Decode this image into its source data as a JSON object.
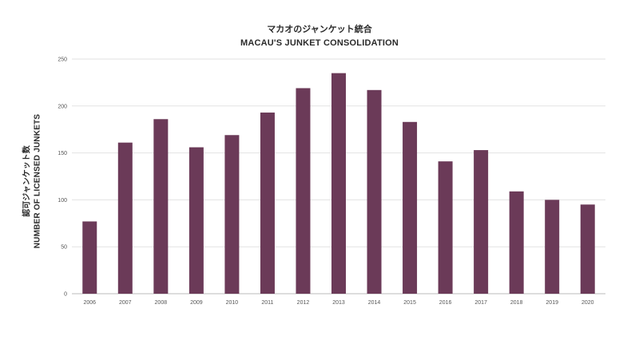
{
  "chart_data": {
    "type": "bar",
    "title": "マカオのジャンケット統合",
    "subtitle": "MACAU'S JUNKET CONSOLIDATION",
    "ylabel": "認可ジャンケット数",
    "ylabel_en": "NUMBER OF LICENSED JUNKETS",
    "xlabel": "",
    "categories": [
      "2006",
      "2007",
      "2008",
      "2009",
      "2010",
      "2011",
      "2012",
      "2013",
      "2014",
      "2015",
      "2016",
      "2017",
      "2018",
      "2019",
      "2020"
    ],
    "values": [
      77,
      161,
      186,
      156,
      169,
      193,
      219,
      235,
      217,
      183,
      141,
      153,
      109,
      100,
      95
    ],
    "ylim": [
      0,
      250
    ],
    "yticks": [
      0,
      50,
      100,
      150,
      200,
      250
    ],
    "grid": true,
    "bar_color": "#6b3a58",
    "grid_color": "#e2e2e2"
  }
}
